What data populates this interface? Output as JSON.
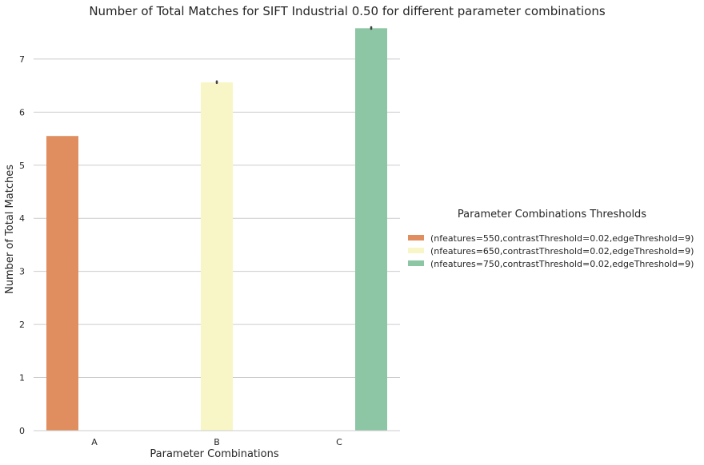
{
  "chart_data": {
    "type": "bar",
    "title": "Number of Total Matches for SIFT Industrial 0.50 for different parameter combinations",
    "xlabel": "Parameter Combinations",
    "ylabel": "Number of Total Matches",
    "categories": [
      "A",
      "B",
      "C"
    ],
    "ylim": [
      0,
      7.6
    ],
    "yticks": [
      0,
      1,
      2,
      3,
      4,
      5,
      6,
      7
    ],
    "grid": "y",
    "legend": {
      "title": "Parameter Combinations Thresholds",
      "placement": "right"
    },
    "series": [
      {
        "name": "(nfeatures=550,contrastThreshold=0.02,edgeThreshold=9)",
        "values": [
          5.55,
          null,
          null
        ],
        "color": "#e08e5f",
        "error": null
      },
      {
        "name": "(nfeatures=650,contrastThreshold=0.02,edgeThreshold=9)",
        "values": [
          null,
          6.56,
          null
        ],
        "color": "#f8f6c6",
        "error": [
          6.55,
          6.58
        ]
      },
      {
        "name": "(nfeatures=750,contrastThreshold=0.02,edgeThreshold=9)",
        "values": [
          null,
          null,
          7.58
        ],
        "color": "#8cc6a5",
        "error": [
          7.57,
          7.6
        ]
      }
    ]
  }
}
